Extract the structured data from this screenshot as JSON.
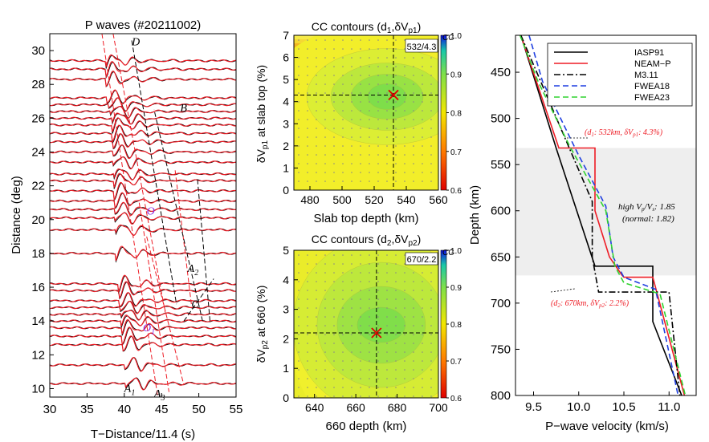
{
  "colors": {
    "black": "#000000",
    "red": "#ee1c25",
    "blue": "#1f3fe0",
    "green": "#2fd22f",
    "purple": "#8a2be2",
    "shade": "#eeeeee"
  },
  "chart_data": [
    {
      "type": "waveform-section",
      "title": "P waves (#20211002)",
      "xlabel": "T−Distance/11.4 (s)",
      "ylabel": "Distance (deg)",
      "xlim": [
        30,
        55
      ],
      "ylim": [
        9.5,
        31
      ],
      "xticks": [
        "30",
        "35",
        "40",
        "45",
        "50",
        "55"
      ],
      "yticks": [
        "10",
        "12",
        "14",
        "16",
        "18",
        "20",
        "22",
        "24",
        "26",
        "28",
        "30"
      ],
      "trace_distances": [
        10.3,
        11.4,
        12.6,
        13.1,
        13.6,
        14.0,
        14.4,
        14.8,
        15.2,
        15.8,
        16.2,
        18.0,
        19.4,
        20.1,
        20.6,
        21.1,
        21.7,
        22.3,
        22.7,
        23.4,
        24.0,
        24.6,
        25.1,
        25.6,
        26.0,
        26.4,
        26.8,
        27.2,
        28.3,
        28.9,
        29.4
      ],
      "annotations": [
        {
          "label": "A",
          "sub": "1",
          "x": 40.0,
          "y": 9.8
        },
        {
          "label": "A",
          "sub": "3",
          "x": 44.0,
          "y": 9.5
        },
        {
          "label": "A",
          "sub": "2",
          "x": 48.5,
          "y": 16.9
        },
        {
          "label": "B",
          "sub": "",
          "x": 47.5,
          "y": 26.4
        },
        {
          "label": "C",
          "sub": "",
          "x": 49.0,
          "y": 14.8
        },
        {
          "label": "D",
          "sub": "",
          "x": 41.0,
          "y": 30.3
        },
        {
          "label": "O",
          "sub": "",
          "x": 43.0,
          "y": 20.3
        },
        {
          "label": "O",
          "sub": "1",
          "x": 42.5,
          "y": 13.4
        }
      ]
    },
    {
      "type": "contour",
      "title": "CC contours (d",
      "title_sub1": "1",
      "title_mid": ",δV",
      "title_sub2": "p1",
      "title_end": ")",
      "xlabel": "Slab top depth (km)",
      "ylabel": "δV",
      "ylabel_sub": "p1",
      "ylabel_end": " at slab top (%)",
      "xlim": [
        470,
        560
      ],
      "ylim": [
        0,
        7
      ],
      "xticks": [
        "480",
        "500",
        "520",
        "540",
        "560"
      ],
      "yticks": [
        "0",
        "1",
        "2",
        "3",
        "4",
        "5",
        "6",
        "7"
      ],
      "best": {
        "x": 532,
        "y": 4.3
      },
      "best_label": "532/4.3",
      "colorbar_label": "CC",
      "colorbar_ticks": [
        "1.0",
        "0.9",
        "0.8",
        "0.7",
        "0.6"
      ],
      "colorbar_range": [
        0.6,
        1.0
      ]
    },
    {
      "type": "contour",
      "title": "CC contours (d",
      "title_sub1": "2",
      "title_mid": ",δV",
      "title_sub2": "p2",
      "title_end": ")",
      "xlabel": "660 depth (km)",
      "ylabel": "δV",
      "ylabel_sub": "p2",
      "ylabel_end": " at 660 (%)",
      "xlim": [
        630,
        700
      ],
      "ylim": [
        0,
        5
      ],
      "xticks": [
        "640",
        "660",
        "680",
        "700"
      ],
      "yticks": [
        "0",
        "1",
        "2",
        "3",
        "4",
        "5"
      ],
      "best": {
        "x": 670,
        "y": 2.2
      },
      "best_label": "670/2.2",
      "colorbar_label": "CC",
      "colorbar_ticks": [
        "1.0",
        "0.9",
        "0.8",
        "0.7",
        "0.6"
      ],
      "colorbar_range": [
        0.6,
        1.0
      ]
    },
    {
      "type": "line",
      "xlabel": "P−wave velocity (km/s)",
      "ylabel": "Depth (km)",
      "xlim": [
        9.3,
        11.3
      ],
      "ylim": [
        410,
        800
      ],
      "y_inverted": true,
      "xticks": [
        "9.5",
        "10.0",
        "10.5",
        "11.0"
      ],
      "yticks": [
        "450",
        "500",
        "550",
        "600",
        "650",
        "700",
        "750",
        "800"
      ],
      "shaded_band": [
        532,
        670
      ],
      "series": [
        {
          "name": "IASP91",
          "style": "solid",
          "color": "#000000",
          "x": [
            9.36,
            9.75,
            10.18,
            10.82,
            10.82,
            11.14
          ],
          "y": [
            410,
            532,
            660,
            660,
            720,
            800
          ]
        },
        {
          "name": "NEAM−P",
          "style": "solid",
          "color": "#ee1c25",
          "x": [
            9.36,
            9.78,
            10.18,
            10.18,
            10.34,
            10.48,
            10.5,
            10.82,
            11.17
          ],
          "y": [
            410,
            532,
            532,
            600,
            650,
            670,
            672,
            672,
            800
          ]
        },
        {
          "name": "M3.11",
          "style": "dashdot",
          "color": "#000000",
          "x": [
            9.36,
            10.15,
            10.15,
            10.22,
            11.0,
            11.12
          ],
          "y": [
            410,
            590,
            650,
            688,
            688,
            800
          ]
        },
        {
          "name": "FWEA18",
          "style": "dashed",
          "color": "#1f3fe0",
          "x": [
            9.45,
            9.6,
            10.0,
            10.3,
            10.38,
            10.5,
            10.85,
            11.1
          ],
          "y": [
            410,
            460,
            540,
            595,
            650,
            672,
            685,
            800
          ]
        },
        {
          "name": "FWEA23",
          "style": "dashed",
          "color": "#2fd22f",
          "x": [
            9.35,
            9.55,
            9.9,
            10.3,
            10.4,
            10.5,
            10.9,
            11.18
          ],
          "y": [
            410,
            460,
            530,
            600,
            660,
            678,
            690,
            800
          ]
        }
      ],
      "annotations": {
        "d1": "(d1: 532km, δVp1: 4.3%)",
        "d1_parts": [
          "(d",
          "1",
          ": 532km, δV",
          "p1",
          ": 4.3%)"
        ],
        "ratio_parts": [
          "high V",
          "p",
          "/V",
          "s",
          ": 1.85"
        ],
        "normal": "(normal: 1.82)",
        "d2_parts": [
          "(d",
          "2",
          ": 670km, δV",
          "p2",
          ": 2.2%)"
        ]
      }
    }
  ]
}
